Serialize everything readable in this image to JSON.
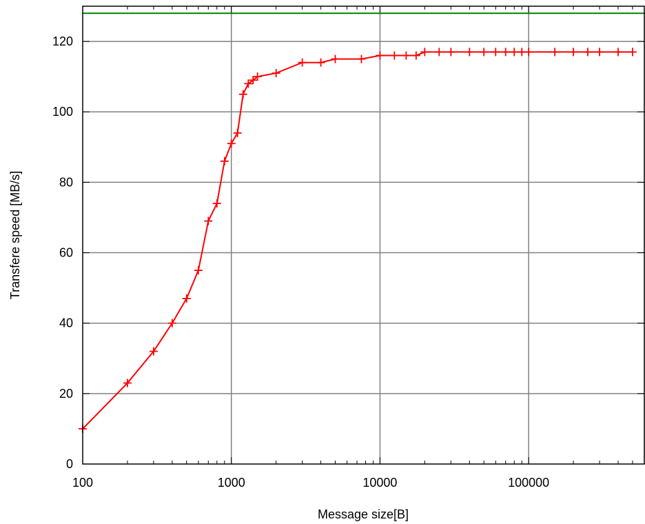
{
  "chart_data": {
    "type": "line",
    "xlabel": "Message size[B]",
    "ylabel": "Transfere speed [MB/s]",
    "x_scale": "log",
    "xlim": [
      100,
      600000
    ],
    "ylim": [
      0,
      130
    ],
    "x_tick_values": [
      100,
      1000,
      10000,
      100000
    ],
    "x_tick_labels": [
      "100",
      "1000",
      "10000",
      "100000"
    ],
    "y_tick_values": [
      0,
      20,
      40,
      60,
      80,
      100,
      120
    ],
    "y_tick_labels": [
      "0",
      "20",
      "40",
      "60",
      "80",
      "100",
      "120"
    ],
    "grid": true,
    "series": [
      {
        "color": "#ff0000",
        "marker": "plus",
        "x": [
          100,
          200,
          300,
          400,
          500,
          600,
          700,
          800,
          900,
          1000,
          1100,
          1200,
          1300,
          1400,
          1500,
          2000,
          3000,
          4000,
          5000,
          7500,
          10000,
          12500,
          15000,
          17500,
          20000,
          25000,
          30000,
          40000,
          50000,
          60000,
          70000,
          80000,
          90000,
          100000,
          150000,
          200000,
          250000,
          300000,
          400000,
          500000
        ],
        "y": [
          10,
          23,
          32,
          40,
          47,
          55,
          69,
          74,
          86,
          91,
          94,
          105,
          108,
          109,
          110,
          111,
          114,
          114,
          115,
          115,
          116,
          116,
          116,
          116,
          117,
          117,
          117,
          117,
          117,
          117,
          117,
          117,
          117,
          117,
          117,
          117,
          117,
          117,
          117,
          117
        ]
      },
      {
        "color": "#008000",
        "marker": "none",
        "x": [
          100,
          600000
        ],
        "y": [
          128,
          128
        ]
      }
    ]
  }
}
